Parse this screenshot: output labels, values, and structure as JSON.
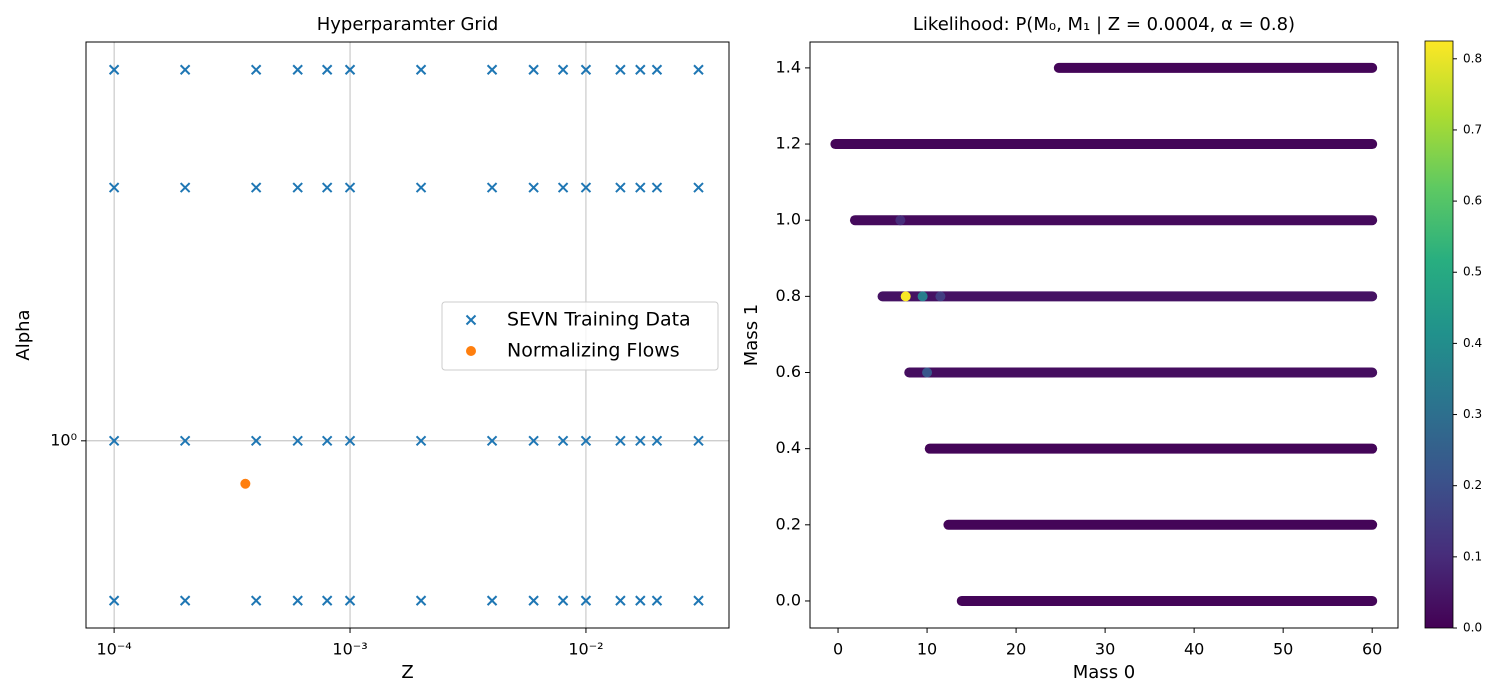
{
  "chart_data": [
    {
      "type": "scatter",
      "title": "Hyperparamter Grid",
      "x_label": "Z",
      "y_label": "Alpha",
      "x_log": true,
      "y_log": true,
      "grid": true,
      "legend": "center right",
      "xlim": [
        7.6e-05,
        0.0404
      ],
      "ylim": [
        0.444,
        5.64
      ],
      "xticks": [
        {
          "value": 0.0001,
          "label": "10⁻⁴"
        },
        {
          "value": 0.001,
          "label": "10⁻³"
        },
        {
          "value": 0.01,
          "label": "10⁻²"
        }
      ],
      "yticks": [
        {
          "value": 1,
          "label": "10⁰"
        }
      ],
      "series": [
        {
          "name": "SEVN Training Data",
          "color": "#1f77b4",
          "marker": "x",
          "x": [
            0.0001,
            0.0002,
            0.0004,
            0.0006,
            0.0008,
            0.001,
            0.002,
            0.004,
            0.006,
            0.008,
            0.01,
            0.014,
            0.017,
            0.02,
            0.03,
            0.0001,
            0.0002,
            0.0004,
            0.0006,
            0.0008,
            0.001,
            0.002,
            0.004,
            0.006,
            0.008,
            0.01,
            0.014,
            0.017,
            0.02,
            0.03,
            0.0001,
            0.0002,
            0.0004,
            0.0006,
            0.0008,
            0.001,
            0.002,
            0.004,
            0.006,
            0.008,
            0.01,
            0.014,
            0.017,
            0.02,
            0.03,
            0.0001,
            0.0002,
            0.0004,
            0.0006,
            0.0008,
            0.001,
            0.002,
            0.004,
            0.006,
            0.008,
            0.01,
            0.014,
            0.017,
            0.02,
            0.03
          ],
          "y": [
            5,
            5,
            5,
            5,
            5,
            5,
            5,
            5,
            5,
            5,
            5,
            5,
            5,
            5,
            5,
            3,
            3,
            3,
            3,
            3,
            3,
            3,
            3,
            3,
            3,
            3,
            3,
            3,
            3,
            3,
            1,
            1,
            1,
            1,
            1,
            1,
            1,
            1,
            1,
            1,
            1,
            1,
            1,
            1,
            1,
            0.5,
            0.5,
            0.5,
            0.5,
            0.5,
            0.5,
            0.5,
            0.5,
            0.5,
            0.5,
            0.5,
            0.5,
            0.5,
            0.5,
            0.5
          ]
        },
        {
          "name": "Normalizing Flows",
          "color": "#ff7f0e",
          "marker": "o",
          "x": [
            0.00036
          ],
          "y": [
            0.83
          ]
        }
      ]
    },
    {
      "type": "strip",
      "title": "Likelihood: P(M₀, M₁ | Z = 0.0004, α = 0.8)",
      "x_label": "Mass 0",
      "y_label": "Mass 1",
      "colormap": "viridis",
      "xlim": [
        -3.15,
        62.9
      ],
      "ylim": [
        -0.071,
        1.468
      ],
      "xticks": [
        0,
        10,
        20,
        30,
        40,
        50,
        60
      ],
      "yticks": [
        {
          "value": 0,
          "label": "0.0"
        },
        0.2,
        0.4,
        0.6,
        0.8,
        {
          "value": 1,
          "label": "1.0"
        },
        1.2,
        1.4
      ],
      "clim": [
        0,
        0.825
      ],
      "cticks": [
        {
          "value": 0,
          "label": "0.0"
        },
        0.1,
        0.2,
        0.3,
        0.4,
        0.5,
        0.6,
        0.7,
        0.8
      ],
      "segments": [
        {
          "y": 1.4,
          "x_start": 24.8,
          "x_end": 60,
          "value": 0.01
        },
        {
          "y": 1.2,
          "x_start": -0.3,
          "x_end": 60,
          "value": 0.01
        },
        {
          "y": 1.0,
          "x_start": 1.9,
          "x_end": 60,
          "value": 0.02
        },
        {
          "y": 0.8,
          "x_start": 5.0,
          "x_end": 60,
          "value": 0.04
        },
        {
          "y": 0.6,
          "x_start": 8.0,
          "x_end": 60,
          "value": 0.03
        },
        {
          "y": 0.4,
          "x_start": 10.3,
          "x_end": 60,
          "value": 0.01
        },
        {
          "y": 0.2,
          "x_start": 12.4,
          "x_end": 60,
          "value": 0.01
        },
        {
          "y": 0.0,
          "x_start": 13.9,
          "x_end": 60,
          "value": 0.01
        }
      ],
      "peaks": [
        {
          "x": 7.6,
          "y": 0.8,
          "value": 0.82
        },
        {
          "x": 9.5,
          "y": 0.8,
          "value": 0.35
        },
        {
          "x": 11.5,
          "y": 0.8,
          "value": 0.15
        },
        {
          "x": 10.0,
          "y": 0.6,
          "value": 0.22
        },
        {
          "x": 7.0,
          "y": 1.0,
          "value": 0.1
        }
      ]
    }
  ]
}
